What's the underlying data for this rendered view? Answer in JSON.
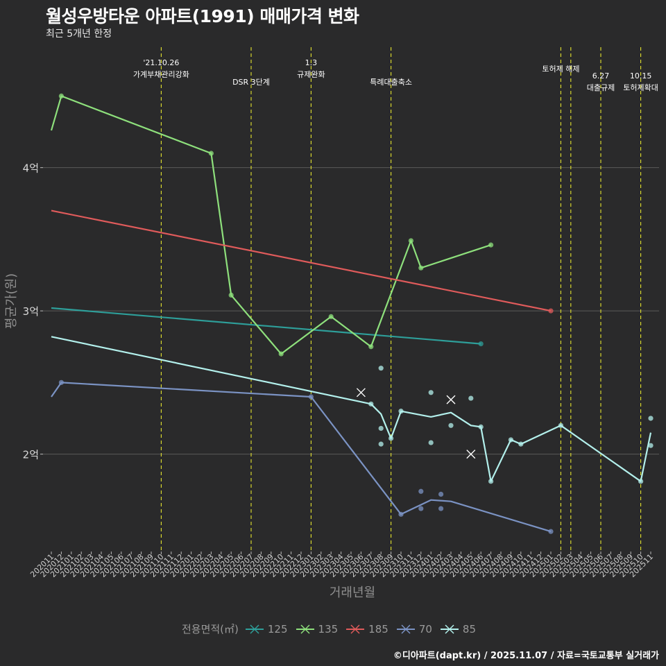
{
  "chart_data": {
    "type": "line",
    "title": "월성우방타운 아파트(1991) 매매가격 변화",
    "subtitle": "최근 5개년 한정",
    "xlabel": "거래년월",
    "ylabel": "평균가(원)",
    "ylim": [
      1.32,
      4.87
    ],
    "yticks": [
      {
        "value": 2,
        "label": "2억"
      },
      {
        "value": 3,
        "label": "3억"
      },
      {
        "value": 4,
        "label": "4억"
      }
    ],
    "x_start": "2020-11",
    "x_end": "2025-11",
    "xtick_labels": [
      "202011",
      "202012",
      "202101",
      "202102",
      "202103",
      "202104",
      "202105",
      "202106",
      "202107",
      "202108",
      "202109",
      "202110",
      "202111",
      "202112",
      "202201",
      "202202",
      "202203",
      "202204",
      "202205",
      "202206",
      "202207",
      "202208",
      "202209",
      "202210",
      "202211",
      "202212",
      "202301",
      "202302",
      "202303",
      "202304",
      "202305",
      "202306",
      "202307",
      "202308",
      "202309",
      "202310",
      "202311",
      "202312",
      "202401",
      "202402",
      "202403",
      "202404",
      "202405",
      "202406",
      "202407",
      "202408",
      "202409",
      "202410",
      "202411",
      "202412",
      "202501",
      "202502",
      "202503",
      "202504",
      "202505",
      "202506",
      "202507",
      "202508",
      "202509",
      "202510",
      "202511"
    ],
    "events": [
      {
        "month": "2021-10",
        "label": [
          "'21.10.26",
          "가계부채관리강화"
        ],
        "row": 0
      },
      {
        "month": "2022-07",
        "label": [
          "DSR 3단계"
        ],
        "row": 1
      },
      {
        "month": "2023-01",
        "label": [
          "1.3",
          "규제완화"
        ],
        "row": 0
      },
      {
        "month": "2023-09",
        "label": [
          "특례대출축소"
        ],
        "row": 1
      },
      {
        "month": "2025-02",
        "label": [
          "토허제 해제"
        ],
        "row": 0
      },
      {
        "month": "2025-03",
        "label": [],
        "row": 0
      },
      {
        "month": "2025-06",
        "label": [
          "6.27",
          "대출규제"
        ],
        "row": 1
      },
      {
        "month": "2025-10",
        "label": [
          "10.15",
          "토허제확대"
        ],
        "row": 1
      }
    ],
    "series": [
      {
        "name": "125",
        "color": "#2e9f9a",
        "trend": [
          [
            "2020-11",
            3.02
          ],
          [
            "2024-06",
            2.77
          ]
        ],
        "line": [],
        "points": [
          [
            "2024-06",
            2.77
          ]
        ],
        "crosses": []
      },
      {
        "name": "135",
        "color": "#8ee07c",
        "trend": [],
        "line": [
          [
            "2020-11",
            4.26
          ],
          [
            "2020-12",
            4.5
          ],
          [
            "2022-03",
            4.1
          ],
          [
            "2022-05",
            3.11
          ],
          [
            "2022-10",
            2.7
          ],
          [
            "2023-03",
            2.96
          ],
          [
            "2023-07",
            2.75
          ],
          [
            "2023-11",
            3.49
          ],
          [
            "2023-12",
            3.3
          ],
          [
            "2024-07",
            3.46
          ]
        ],
        "points": [
          [
            "2020-12",
            4.5
          ],
          [
            "2022-03",
            4.1
          ],
          [
            "2022-05",
            3.11
          ],
          [
            "2022-10",
            2.7
          ],
          [
            "2023-03",
            2.96
          ],
          [
            "2023-07",
            2.75
          ],
          [
            "2023-11",
            3.49
          ],
          [
            "2023-12",
            3.3
          ],
          [
            "2024-07",
            3.46
          ]
        ],
        "crosses": []
      },
      {
        "name": "185",
        "color": "#e05b5b",
        "trend": [
          [
            "2020-11",
            3.7
          ],
          [
            "2025-01",
            3.0
          ]
        ],
        "line": [],
        "points": [
          [
            "2025-01",
            3.0
          ]
        ],
        "crosses": []
      },
      {
        "name": "70",
        "color": "#7b93c4",
        "trend": [],
        "line": [
          [
            "2020-11",
            2.4
          ],
          [
            "2020-12",
            2.5
          ],
          [
            "2023-01",
            2.4
          ],
          [
            "2023-10",
            1.58
          ],
          [
            "2024-01",
            1.68
          ],
          [
            "2024-03",
            1.67
          ],
          [
            "2025-01",
            1.46
          ]
        ],
        "points": [
          [
            "2020-12",
            2.5
          ],
          [
            "2023-01",
            2.4
          ],
          [
            "2023-10",
            1.58
          ],
          [
            "2023-12",
            1.74
          ],
          [
            "2023-12",
            1.62
          ],
          [
            "2024-02",
            1.72
          ],
          [
            "2024-02",
            1.62
          ],
          [
            "2025-01",
            1.46
          ]
        ],
        "crosses": []
      },
      {
        "name": "85",
        "color": "#b3f0ec",
        "trend": [
          [
            "2020-11",
            2.82
          ],
          [
            "2023-07",
            2.35
          ]
        ],
        "line": [
          [
            "2023-07",
            2.35
          ],
          [
            "2023-08",
            2.28
          ],
          [
            "2023-09",
            2.11
          ],
          [
            "2023-10",
            2.3
          ],
          [
            "2024-01",
            2.26
          ],
          [
            "2024-03",
            2.29
          ],
          [
            "2024-05",
            2.2
          ],
          [
            "2024-06",
            2.19
          ],
          [
            "2024-07",
            1.81
          ],
          [
            "2024-09",
            2.1
          ],
          [
            "2024-10",
            2.07
          ],
          [
            "2025-02",
            2.2
          ],
          [
            "2025-10",
            1.81
          ],
          [
            "2025-11",
            2.15
          ]
        ],
        "points": [
          [
            "2023-07",
            2.35
          ],
          [
            "2023-08",
            2.6
          ],
          [
            "2023-08",
            2.18
          ],
          [
            "2023-08",
            2.07
          ],
          [
            "2023-09",
            2.11
          ],
          [
            "2023-10",
            2.3
          ],
          [
            "2024-01",
            2.43
          ],
          [
            "2024-01",
            2.08
          ],
          [
            "2024-03",
            2.2
          ],
          [
            "2024-05",
            2.39
          ],
          [
            "2024-06",
            2.19
          ],
          [
            "2024-07",
            1.81
          ],
          [
            "2024-09",
            2.1
          ],
          [
            "2024-10",
            2.07
          ],
          [
            "2025-02",
            2.2
          ],
          [
            "2025-10",
            1.81
          ],
          [
            "2025-11",
            2.25
          ],
          [
            "2025-11",
            2.06
          ]
        ],
        "crosses": [
          [
            "2023-06",
            2.43
          ],
          [
            "2024-03",
            2.38
          ],
          [
            "2024-05",
            2.0
          ]
        ]
      }
    ],
    "legend_title": "전용면적(㎡)",
    "caption": "©디아파트(dapt.kr) / 2025.11.07 / 자료=국토교통부 실거래가"
  }
}
